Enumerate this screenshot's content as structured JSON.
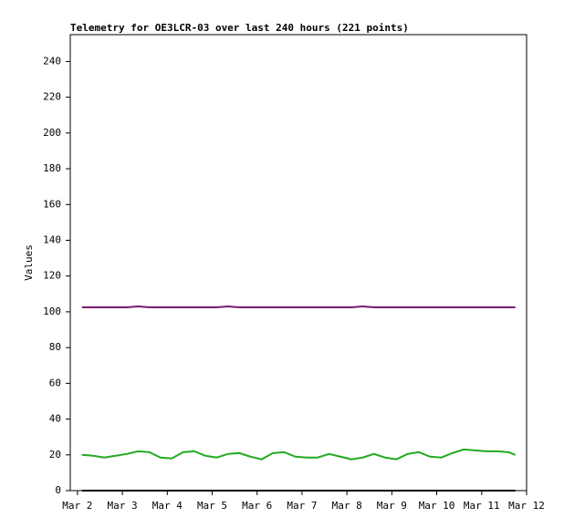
{
  "chart_data": {
    "type": "line",
    "title": "Telemetry for OE3LCR-03 over last 240 hours (221 points)",
    "y_label": "Values",
    "x": [
      2.1,
      2.35,
      2.6,
      2.85,
      3.1,
      3.35,
      3.6,
      3.85,
      4.1,
      4.35,
      4.6,
      4.85,
      5.1,
      5.35,
      5.6,
      5.85,
      6.1,
      6.35,
      6.6,
      6.85,
      7.1,
      7.35,
      7.6,
      7.85,
      8.1,
      8.35,
      8.6,
      8.85,
      9.1,
      9.35,
      9.6,
      9.85,
      10.1,
      10.35,
      10.6,
      10.85,
      11.1,
      11.35,
      11.6,
      11.75
    ],
    "series": [
      {
        "color": "#7a1a6e",
        "values": [
          102.5,
          102.5,
          102.5,
          102.5,
          102.5,
          103,
          102.5,
          102.5,
          102.5,
          102.5,
          102.5,
          102.5,
          102.5,
          103,
          102.5,
          102.5,
          102.5,
          102.5,
          102.5,
          102.5,
          102.5,
          102.5,
          102.5,
          102.5,
          102.5,
          103,
          102.5,
          102.5,
          102.5,
          102.5,
          102.5,
          102.5,
          102.5,
          102.5,
          102.5,
          102.5,
          102.5,
          102.5,
          102.5,
          102.5
        ]
      },
      {
        "color": "#22aa22",
        "values": [
          20,
          19.5,
          18.5,
          19.5,
          20.5,
          22,
          21.5,
          18.5,
          18,
          21.5,
          22,
          19.5,
          18.5,
          20.5,
          21,
          19,
          17.5,
          21,
          21.5,
          19,
          18.5,
          18.5,
          20.5,
          19,
          17.5,
          18.5,
          20.5,
          18.5,
          17.5,
          20.5,
          21.5,
          19,
          18.5,
          21,
          23,
          22.5,
          22,
          22,
          21.5,
          20
        ]
      },
      {
        "color": "#000000",
        "values": [
          0,
          0,
          0,
          0,
          0,
          0,
          0,
          0,
          0,
          0,
          0,
          0,
          0,
          0,
          0,
          0,
          0,
          0,
          0,
          0,
          0,
          0,
          0,
          0,
          0,
          0,
          0,
          0,
          0,
          0,
          0,
          0,
          0,
          0,
          0,
          0,
          0,
          0,
          0,
          0
        ]
      }
    ],
    "xlim": [
      1.84,
      12
    ],
    "xticks": [
      {
        "value": 2,
        "label": "Mar 2"
      },
      {
        "value": 3,
        "label": "Mar 3"
      },
      {
        "value": 4,
        "label": "Mar 4"
      },
      {
        "value": 5,
        "label": "Mar 5"
      },
      {
        "value": 6,
        "label": "Mar 6"
      },
      {
        "value": 7,
        "label": "Mar 7"
      },
      {
        "value": 8,
        "label": "Mar 8"
      },
      {
        "value": 9,
        "label": "Mar 9"
      },
      {
        "value": 10,
        "label": "Mar 10"
      },
      {
        "value": 11,
        "label": "Mar 11"
      },
      {
        "value": 12,
        "label": "Mar 12"
      }
    ],
    "ylim": [
      0,
      255
    ],
    "yticks": [
      0,
      20,
      40,
      60,
      80,
      100,
      120,
      140,
      160,
      180,
      200,
      220,
      240
    ]
  }
}
